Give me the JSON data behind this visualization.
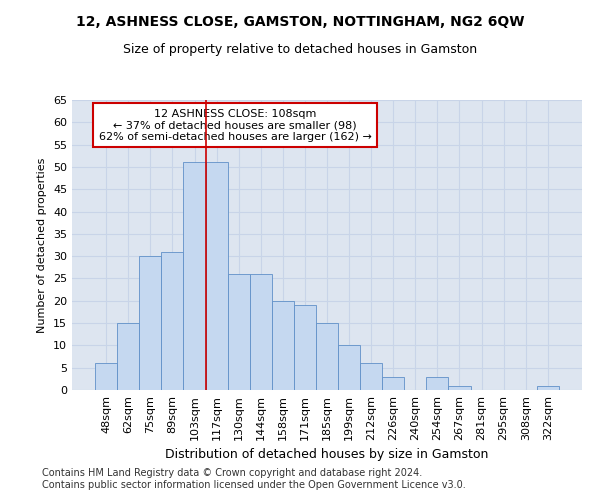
{
  "title": "12, ASHNESS CLOSE, GAMSTON, NOTTINGHAM, NG2 6QW",
  "subtitle": "Size of property relative to detached houses in Gamston",
  "xlabel": "Distribution of detached houses by size in Gamston",
  "ylabel": "Number of detached properties",
  "categories": [
    "48sqm",
    "62sqm",
    "75sqm",
    "89sqm",
    "103sqm",
    "117sqm",
    "130sqm",
    "144sqm",
    "158sqm",
    "171sqm",
    "185sqm",
    "199sqm",
    "212sqm",
    "226sqm",
    "240sqm",
    "254sqm",
    "267sqm",
    "281sqm",
    "295sqm",
    "308sqm",
    "322sqm"
  ],
  "values": [
    6,
    15,
    30,
    31,
    51,
    51,
    26,
    26,
    20,
    19,
    15,
    10,
    6,
    3,
    0,
    3,
    1,
    0,
    0,
    0,
    1
  ],
  "bar_color": "#c5d8f0",
  "bar_edge_color": "#6090c8",
  "bar_width": 1.0,
  "red_line_x": 4.5,
  "annotation_text": "12 ASHNESS CLOSE: 108sqm\n← 37% of detached houses are smaller (98)\n62% of semi-detached houses are larger (162) →",
  "annotation_box_color": "#ffffff",
  "annotation_box_edge_color": "#cc0000",
  "ylim": [
    0,
    65
  ],
  "yticks": [
    0,
    5,
    10,
    15,
    20,
    25,
    30,
    35,
    40,
    45,
    50,
    55,
    60,
    65
  ],
  "grid_color": "#c8d4e8",
  "background_color": "#dde5f0",
  "footer_line1": "Contains HM Land Registry data © Crown copyright and database right 2024.",
  "footer_line2": "Contains public sector information licensed under the Open Government Licence v3.0.",
  "title_fontsize": 10,
  "subtitle_fontsize": 9,
  "xlabel_fontsize": 9,
  "ylabel_fontsize": 8,
  "tick_fontsize": 8,
  "annotation_fontsize": 8,
  "footer_fontsize": 7
}
